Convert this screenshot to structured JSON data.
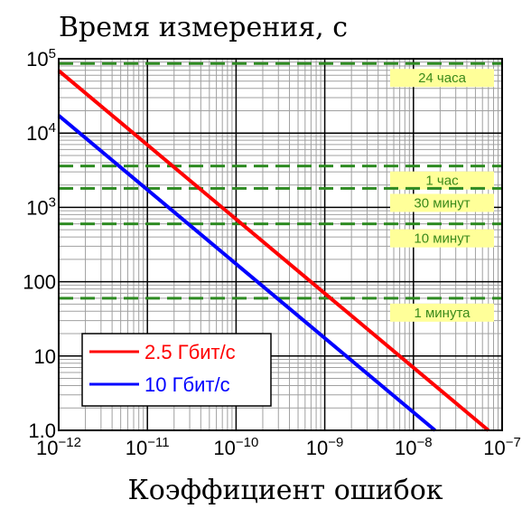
{
  "chart_data": {
    "type": "line",
    "title": "Время измерения, с",
    "xlabel": "Коэффициент ошибок",
    "ylabel": "",
    "xscale": "log",
    "yscale": "log",
    "xlim": [
      1e-12,
      1e-07
    ],
    "ylim": [
      1,
      100000
    ],
    "grid": true,
    "legend_position": "bottom-left",
    "x_ticks": [
      {
        "value": 1e-12,
        "base": "10",
        "exp": "−12"
      },
      {
        "value": 1e-11,
        "base": "10",
        "exp": "−11"
      },
      {
        "value": 1e-10,
        "base": "10",
        "exp": "−10"
      },
      {
        "value": 1e-09,
        "base": "10",
        "exp": "−9"
      },
      {
        "value": 1e-08,
        "base": "10",
        "exp": "−8"
      },
      {
        "value": 1e-07,
        "base": "10",
        "exp": "−7"
      }
    ],
    "y_ticks": [
      {
        "value": 1,
        "base": "1.0",
        "exp": ""
      },
      {
        "value": 10,
        "base": "10",
        "exp": ""
      },
      {
        "value": 100,
        "base": "100",
        "exp": ""
      },
      {
        "value": 1000,
        "base": "10",
        "exp": "3"
      },
      {
        "value": 10000,
        "base": "10",
        "exp": "4"
      },
      {
        "value": 100000,
        "base": "10",
        "exp": "5"
      }
    ],
    "series": [
      {
        "name": "2.5 Гбит/с",
        "color": "#ff0000",
        "x": [
          1e-12,
          7e-08
        ],
        "y": [
          69000,
          1
        ]
      },
      {
        "name": "10 Гбит/с",
        "color": "#0000ff",
        "x": [
          1e-12,
          1.75e-08
        ],
        "y": [
          17200,
          1
        ]
      }
    ],
    "reference_lines": [
      {
        "label": "24 часа",
        "y": 86400
      },
      {
        "label": "1 час",
        "y": 3600
      },
      {
        "label": "30 минут",
        "y": 1800
      },
      {
        "label": "10 минут",
        "y": 600
      },
      {
        "label": "1 минута",
        "y": 60
      }
    ],
    "colors": {
      "reference_line": "#2e8b22",
      "annotation_bg": "#ffff99",
      "annotation_text": "#3a8a1a",
      "grid_major": "#000000",
      "grid_minor": "#a0a0a0"
    }
  }
}
